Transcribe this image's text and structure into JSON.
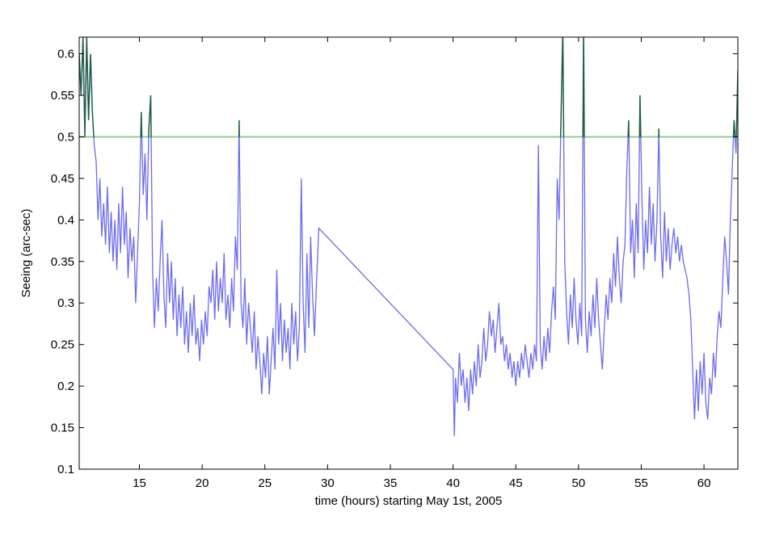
{
  "chart_data": {
    "type": "line",
    "title": "",
    "xlabel": "time (hours) starting May 1st, 2005",
    "ylabel": "Seeing (arc-sec)",
    "xlim": [
      10.2,
      62.7
    ],
    "ylim": [
      0.1,
      0.62
    ],
    "xticks": [
      15,
      20,
      25,
      30,
      35,
      40,
      45,
      50,
      55,
      60
    ],
    "yticks": [
      0.1,
      0.15,
      0.2,
      0.25,
      0.3,
      0.35,
      0.4,
      0.45,
      0.5,
      0.55,
      0.6
    ],
    "xtick_labels": [
      "15",
      "20",
      "25",
      "30",
      "35",
      "40",
      "45",
      "50",
      "55",
      "60"
    ],
    "ytick_labels": [
      "0.1",
      "0.15",
      "0.2",
      "0.25",
      "0.3",
      "0.35",
      "0.4",
      "0.45",
      "0.5",
      "0.55",
      "0.6"
    ],
    "grid": false,
    "threshold": {
      "y": 0.5,
      "color": "#8fd18f"
    },
    "series_color": "#3a3ae8",
    "above_threshold_color": "#1f5a4a",
    "series": [
      {
        "points": [
          [
            10.2,
            0.6
          ],
          [
            10.35,
            0.55
          ],
          [
            10.5,
            0.62
          ],
          [
            10.65,
            0.5
          ],
          [
            10.8,
            0.62
          ],
          [
            10.95,
            0.52
          ],
          [
            11.1,
            0.6
          ],
          [
            11.25,
            0.53
          ],
          [
            11.4,
            0.49
          ],
          [
            11.55,
            0.47
          ],
          [
            11.7,
            0.4
          ],
          [
            11.85,
            0.45
          ],
          [
            12.0,
            0.38
          ],
          [
            12.15,
            0.42
          ],
          [
            12.3,
            0.37
          ],
          [
            12.45,
            0.44
          ],
          [
            12.6,
            0.36
          ],
          [
            12.75,
            0.41
          ],
          [
            12.9,
            0.35
          ],
          [
            13.05,
            0.4
          ],
          [
            13.2,
            0.34
          ],
          [
            13.35,
            0.42
          ],
          [
            13.5,
            0.36
          ],
          [
            13.65,
            0.44
          ],
          [
            13.8,
            0.37
          ],
          [
            13.95,
            0.41
          ],
          [
            14.1,
            0.33
          ],
          [
            14.25,
            0.39
          ],
          [
            14.4,
            0.35
          ],
          [
            14.55,
            0.38
          ],
          [
            14.7,
            0.3
          ],
          [
            14.85,
            0.36
          ],
          [
            15.0,
            0.42
          ],
          [
            15.15,
            0.53
          ],
          [
            15.3,
            0.43
          ],
          [
            15.45,
            0.48
          ],
          [
            15.6,
            0.4
          ],
          [
            15.75,
            0.51
          ],
          [
            15.9,
            0.55
          ],
          [
            16.05,
            0.34
          ],
          [
            16.2,
            0.27
          ],
          [
            16.35,
            0.33
          ],
          [
            16.5,
            0.29
          ],
          [
            16.65,
            0.35
          ],
          [
            16.8,
            0.4
          ],
          [
            16.95,
            0.31
          ],
          [
            17.1,
            0.27
          ],
          [
            17.25,
            0.36
          ],
          [
            17.4,
            0.3
          ],
          [
            17.55,
            0.35
          ],
          [
            17.7,
            0.28
          ],
          [
            17.85,
            0.33
          ],
          [
            18.0,
            0.26
          ],
          [
            18.15,
            0.31
          ],
          [
            18.3,
            0.27
          ],
          [
            18.45,
            0.32
          ],
          [
            18.6,
            0.25
          ],
          [
            18.75,
            0.29
          ],
          [
            18.9,
            0.24
          ],
          [
            19.05,
            0.3
          ],
          [
            19.2,
            0.26
          ],
          [
            19.35,
            0.31
          ],
          [
            19.5,
            0.25
          ],
          [
            19.65,
            0.27
          ],
          [
            19.8,
            0.23
          ],
          [
            19.95,
            0.28
          ],
          [
            20.1,
            0.25
          ],
          [
            20.25,
            0.29
          ],
          [
            20.4,
            0.26
          ],
          [
            20.55,
            0.32
          ],
          [
            20.7,
            0.3
          ],
          [
            20.85,
            0.34
          ],
          [
            21.0,
            0.28
          ],
          [
            21.15,
            0.35
          ],
          [
            21.3,
            0.29
          ],
          [
            21.45,
            0.33
          ],
          [
            21.6,
            0.3
          ],
          [
            21.75,
            0.36
          ],
          [
            21.9,
            0.28
          ],
          [
            22.05,
            0.31
          ],
          [
            22.2,
            0.27
          ],
          [
            22.35,
            0.33
          ],
          [
            22.5,
            0.29
          ],
          [
            22.65,
            0.38
          ],
          [
            22.8,
            0.34
          ],
          [
            22.95,
            0.52
          ],
          [
            23.1,
            0.3
          ],
          [
            23.25,
            0.27
          ],
          [
            23.4,
            0.33
          ],
          [
            23.55,
            0.25
          ],
          [
            23.7,
            0.3
          ],
          [
            23.85,
            0.27
          ],
          [
            24.0,
            0.24
          ],
          [
            24.15,
            0.29
          ],
          [
            24.3,
            0.22
          ],
          [
            24.45,
            0.26
          ],
          [
            24.6,
            0.23
          ],
          [
            24.75,
            0.19
          ],
          [
            24.9,
            0.24
          ],
          [
            25.05,
            0.21
          ],
          [
            25.2,
            0.26
          ],
          [
            25.35,
            0.19
          ],
          [
            25.5,
            0.23
          ],
          [
            25.65,
            0.27
          ],
          [
            25.8,
            0.22
          ],
          [
            25.95,
            0.34
          ],
          [
            26.1,
            0.25
          ],
          [
            26.25,
            0.3
          ],
          [
            26.4,
            0.23
          ],
          [
            26.55,
            0.28
          ],
          [
            26.7,
            0.24
          ],
          [
            26.85,
            0.27
          ],
          [
            27.0,
            0.22
          ],
          [
            27.15,
            0.3
          ],
          [
            27.3,
            0.25
          ],
          [
            27.45,
            0.29
          ],
          [
            27.6,
            0.23
          ],
          [
            27.75,
            0.27
          ],
          [
            27.9,
            0.45
          ],
          [
            28.05,
            0.3
          ],
          [
            28.2,
            0.24
          ],
          [
            28.35,
            0.36
          ],
          [
            28.5,
            0.27
          ],
          [
            28.65,
            0.38
          ],
          [
            28.8,
            0.31
          ],
          [
            28.95,
            0.26
          ],
          [
            29.1,
            0.32
          ],
          [
            29.3,
            0.39
          ],
          [
            40.0,
            0.22
          ],
          [
            40.1,
            0.14
          ],
          [
            40.2,
            0.21
          ],
          [
            40.35,
            0.18
          ],
          [
            40.5,
            0.24
          ],
          [
            40.65,
            0.2
          ],
          [
            40.8,
            0.22
          ],
          [
            40.95,
            0.18
          ],
          [
            41.1,
            0.21
          ],
          [
            41.25,
            0.17
          ],
          [
            41.4,
            0.22
          ],
          [
            41.55,
            0.19
          ],
          [
            41.7,
            0.23
          ],
          [
            41.85,
            0.2
          ],
          [
            42.0,
            0.25
          ],
          [
            42.15,
            0.21
          ],
          [
            42.3,
            0.23
          ],
          [
            42.45,
            0.27
          ],
          [
            42.6,
            0.23
          ],
          [
            42.75,
            0.25
          ],
          [
            42.9,
            0.29
          ],
          [
            43.05,
            0.26
          ],
          [
            43.2,
            0.28
          ],
          [
            43.35,
            0.24
          ],
          [
            43.5,
            0.27
          ],
          [
            43.65,
            0.3
          ],
          [
            43.8,
            0.25
          ],
          [
            43.95,
            0.26
          ],
          [
            44.1,
            0.23
          ],
          [
            44.25,
            0.25
          ],
          [
            44.4,
            0.22
          ],
          [
            44.55,
            0.24
          ],
          [
            44.7,
            0.21
          ],
          [
            44.85,
            0.23
          ],
          [
            45.0,
            0.2
          ],
          [
            45.15,
            0.23
          ],
          [
            45.3,
            0.21
          ],
          [
            45.45,
            0.24
          ],
          [
            45.6,
            0.22
          ],
          [
            45.75,
            0.25
          ],
          [
            45.9,
            0.23
          ],
          [
            46.05,
            0.21
          ],
          [
            46.2,
            0.24
          ],
          [
            46.35,
            0.22
          ],
          [
            46.5,
            0.25
          ],
          [
            46.65,
            0.23
          ],
          [
            46.8,
            0.49
          ],
          [
            46.95,
            0.25
          ],
          [
            47.1,
            0.22
          ],
          [
            47.25,
            0.26
          ],
          [
            47.4,
            0.23
          ],
          [
            47.55,
            0.27
          ],
          [
            47.7,
            0.24
          ],
          [
            47.85,
            0.29
          ],
          [
            48.0,
            0.32
          ],
          [
            48.15,
            0.28
          ],
          [
            48.3,
            0.45
          ],
          [
            48.45,
            0.4
          ],
          [
            48.6,
            0.52
          ],
          [
            48.75,
            0.63
          ],
          [
            48.9,
            0.35
          ],
          [
            49.05,
            0.29
          ],
          [
            49.2,
            0.25
          ],
          [
            49.35,
            0.31
          ],
          [
            49.5,
            0.27
          ],
          [
            49.65,
            0.33
          ],
          [
            49.8,
            0.28
          ],
          [
            49.95,
            0.25
          ],
          [
            50.1,
            0.3
          ],
          [
            50.25,
            0.26
          ],
          [
            50.4,
            0.63
          ],
          [
            50.55,
            0.28
          ],
          [
            50.7,
            0.24
          ],
          [
            50.85,
            0.29
          ],
          [
            51.0,
            0.26
          ],
          [
            51.15,
            0.31
          ],
          [
            51.3,
            0.27
          ],
          [
            51.45,
            0.33
          ],
          [
            51.6,
            0.28
          ],
          [
            51.75,
            0.25
          ],
          [
            51.9,
            0.22
          ],
          [
            52.05,
            0.27
          ],
          [
            52.2,
            0.31
          ],
          [
            52.35,
            0.28
          ],
          [
            52.5,
            0.33
          ],
          [
            52.65,
            0.3
          ],
          [
            52.8,
            0.36
          ],
          [
            52.95,
            0.32
          ],
          [
            53.1,
            0.38
          ],
          [
            53.25,
            0.33
          ],
          [
            53.4,
            0.3
          ],
          [
            53.55,
            0.35
          ],
          [
            53.7,
            0.37
          ],
          [
            53.85,
            0.46
          ],
          [
            54.0,
            0.52
          ],
          [
            54.15,
            0.36
          ],
          [
            54.3,
            0.4
          ],
          [
            54.45,
            0.33
          ],
          [
            54.6,
            0.42
          ],
          [
            54.75,
            0.36
          ],
          [
            54.9,
            0.55
          ],
          [
            55.05,
            0.43
          ],
          [
            55.2,
            0.34
          ],
          [
            55.35,
            0.4
          ],
          [
            55.5,
            0.36
          ],
          [
            55.65,
            0.44
          ],
          [
            55.8,
            0.37
          ],
          [
            55.95,
            0.42
          ],
          [
            56.1,
            0.35
          ],
          [
            56.25,
            0.4
          ],
          [
            56.4,
            0.51
          ],
          [
            56.55,
            0.38
          ],
          [
            56.7,
            0.33
          ],
          [
            56.85,
            0.41
          ],
          [
            57.0,
            0.35
          ],
          [
            57.15,
            0.39
          ],
          [
            57.3,
            0.34
          ],
          [
            57.45,
            0.37
          ],
          [
            57.6,
            0.39
          ],
          [
            57.75,
            0.36
          ],
          [
            57.9,
            0.38
          ],
          [
            58.05,
            0.35
          ],
          [
            58.2,
            0.37
          ],
          [
            58.35,
            0.35
          ],
          [
            58.5,
            0.34
          ],
          [
            58.65,
            0.33
          ],
          [
            58.8,
            0.31
          ],
          [
            58.95,
            0.28
          ],
          [
            59.1,
            0.22
          ],
          [
            59.25,
            0.16
          ],
          [
            59.4,
            0.22
          ],
          [
            59.55,
            0.17
          ],
          [
            59.7,
            0.23
          ],
          [
            59.85,
            0.19
          ],
          [
            60.0,
            0.24
          ],
          [
            60.15,
            0.18
          ],
          [
            60.3,
            0.16
          ],
          [
            60.45,
            0.21
          ],
          [
            60.6,
            0.19
          ],
          [
            60.75,
            0.24
          ],
          [
            60.9,
            0.21
          ],
          [
            61.05,
            0.26
          ],
          [
            61.2,
            0.29
          ],
          [
            61.35,
            0.27
          ],
          [
            61.5,
            0.33
          ],
          [
            61.65,
            0.38
          ],
          [
            61.8,
            0.35
          ],
          [
            61.95,
            0.31
          ],
          [
            62.1,
            0.4
          ],
          [
            62.25,
            0.46
          ],
          [
            62.4,
            0.52
          ],
          [
            62.55,
            0.48
          ],
          [
            62.7,
            0.58
          ]
        ]
      }
    ]
  }
}
